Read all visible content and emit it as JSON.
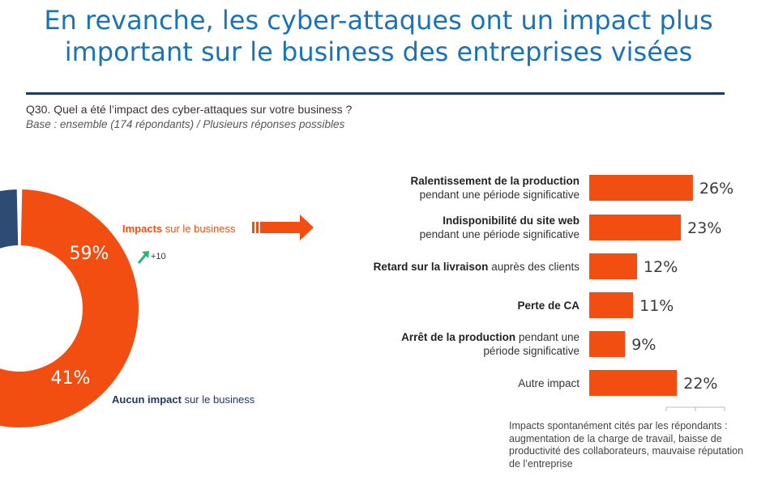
{
  "header": {
    "title": "En revanche, les cyber-attaques ont un impact plus important sur le business des entreprises visées",
    "question": "Q30. Quel a été l’impact des cyber-attaques sur votre business ?",
    "base": "Base : ensemble (174 répondants) / Plusieurs réponses possibles"
  },
  "colors": {
    "accent": "#f24e12",
    "navy": "#2e4b74",
    "title": "#1a73b8",
    "green": "#2bb673"
  },
  "donut": {
    "impact_label_bold": "Impacts",
    "impact_label_rest": " sur le business",
    "none_label_bold": "Aucun impact",
    "none_label_rest": " sur le business",
    "trend": "+10"
  },
  "chart_data": [
    {
      "type": "pie",
      "slices": [
        {
          "label": "Impacts sur le business",
          "value": 59,
          "display": "59%",
          "color": "#f24e12"
        },
        {
          "label": "Aucun impact sur le business",
          "value": 41,
          "display": "41%",
          "color": "#2e4b74"
        }
      ]
    },
    {
      "type": "bar",
      "orientation": "horizontal",
      "xlim": [
        0,
        30
      ],
      "categories": [
        {
          "bold": "Ralentissement de la production",
          "rest": "pendant une période significative",
          "split": "line"
        },
        {
          "bold": "Indisponibilité du site web",
          "rest": "pendant une période significative",
          "split": "line"
        },
        {
          "bold": "Retard sur la livraison",
          "rest": " auprès des clients",
          "split": "inline"
        },
        {
          "bold": "Perte de CA",
          "rest": "",
          "split": "inline"
        },
        {
          "bold": "Arrêt de la production",
          "rest": " pendant une période significative",
          "split": "inline"
        },
        {
          "bold": "",
          "rest": "Autre impact",
          "split": "inline"
        }
      ],
      "values": [
        26,
        23,
        12,
        11,
        9,
        22
      ],
      "value_labels": [
        "26%",
        "23%",
        "12%",
        "11%",
        "9%",
        "22%"
      ],
      "color": "#f24e12"
    }
  ],
  "note": "Impacts spontanément cités par les répondants : augmentation de la charge de travail, baisse de productivité des collaborateurs, mauvaise réputation de l’entreprise"
}
